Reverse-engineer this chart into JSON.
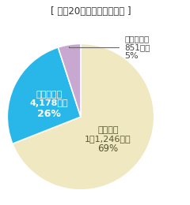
{
  "title": "[ 平成20年度の漁業生産額 ]",
  "slices": [
    {
      "label_line1": "海面漁業",
      "label_line2": "1兆1,246億円",
      "label_line3": "69%",
      "value": 69,
      "color": "#f0e8c0",
      "text_color": "#555533",
      "inside": true
    },
    {
      "label_line1": "海面養殖業",
      "label_line2": "4,178億円",
      "label_line3": "26%",
      "value": 26,
      "color": "#29b6e8",
      "text_color": "#ffffff",
      "inside": true
    },
    {
      "label_line1": "内水面漁業",
      "label_line2": "851億円",
      "label_line3": "5%",
      "value": 5,
      "color": "#c8a8d0",
      "text_color": "#555555",
      "inside": false
    }
  ],
  "startangle": 90,
  "background_color": "#ffffff",
  "title_fontsize": 8.5,
  "title_color": "#333333",
  "inner_label_fontsize": 8.0,
  "outer_label_fontsize": 7.5
}
